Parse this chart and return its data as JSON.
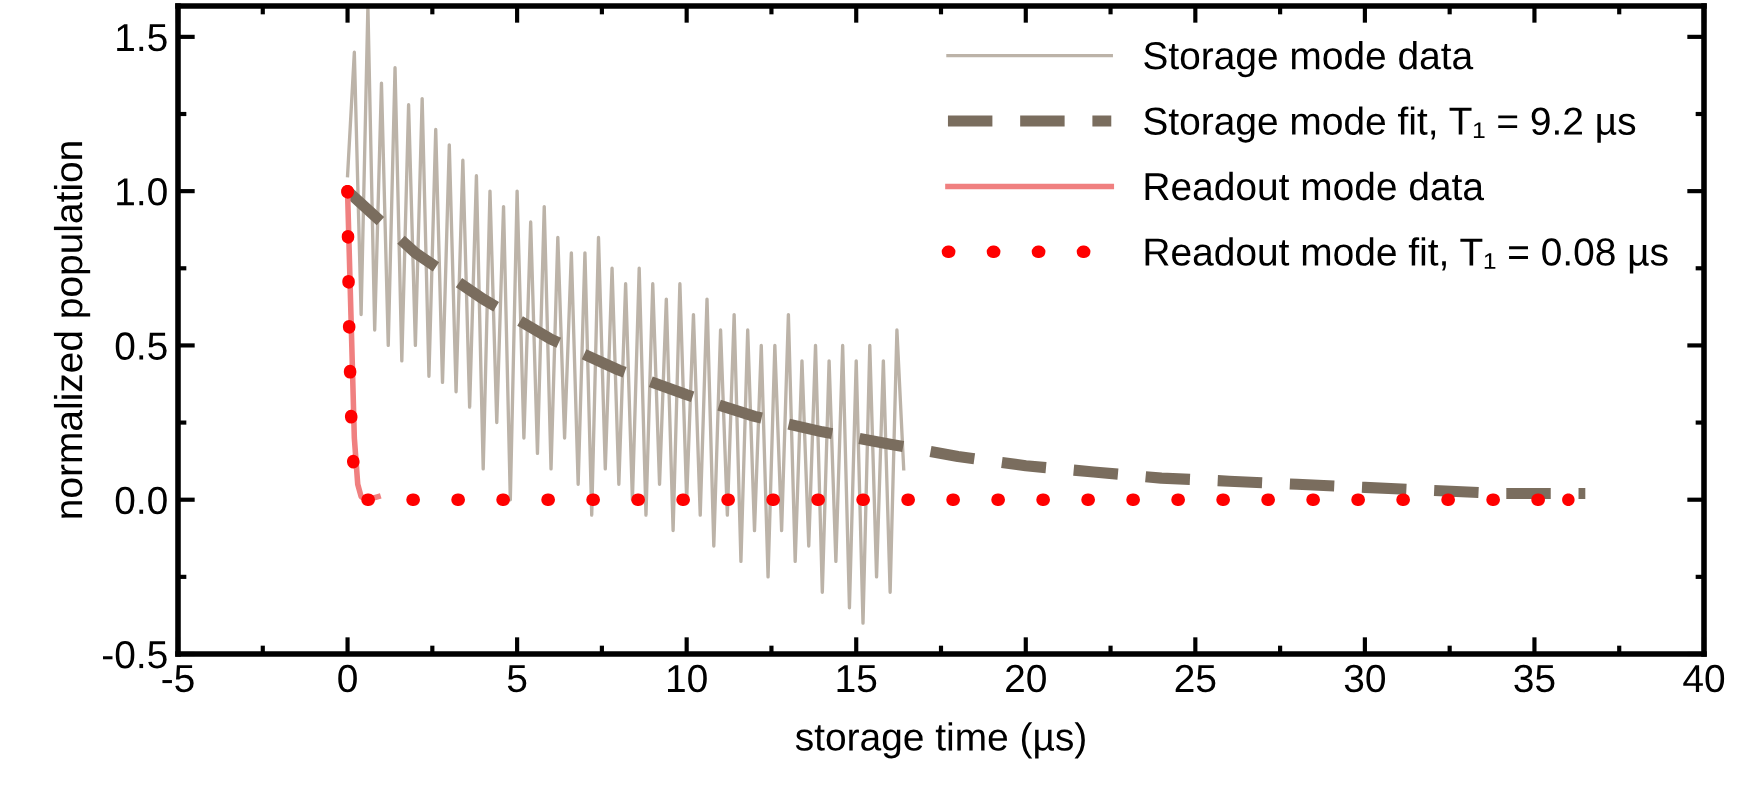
{
  "chart_data": {
    "type": "line",
    "xlabel": "storage time (µs)",
    "ylabel": "normalized population",
    "xlim": [
      -5,
      40
    ],
    "xticks": [
      -5,
      0,
      5,
      10,
      15,
      20,
      25,
      30,
      35,
      40
    ],
    "ylim": [
      -0.5,
      1.6
    ],
    "yticks": [
      -0.5,
      {
        "value": 0,
        "label": "0.0"
      },
      0.5,
      {
        "value": 1,
        "label": "1.0"
      },
      1.5
    ],
    "grid": false,
    "legend": "top right",
    "series": [
      {
        "name": "Storage mode data",
        "color": "#bcb3a8",
        "line_style": "solid",
        "x": [
          0,
          0.2,
          0.4,
          0.6,
          0.8,
          1.0,
          1.2,
          1.4,
          1.6,
          1.8,
          2.0,
          2.2,
          2.4,
          2.6,
          2.8,
          3.0,
          3.2,
          3.4,
          3.6,
          3.8,
          4.0,
          4.2,
          4.4,
          4.6,
          4.8,
          5.0,
          5.2,
          5.4,
          5.6,
          5.8,
          6.0,
          6.2,
          6.4,
          6.6,
          6.8,
          7.0,
          7.2,
          7.4,
          7.6,
          7.8,
          8.0,
          8.2,
          8.4,
          8.6,
          8.8,
          9.0,
          9.2,
          9.4,
          9.6,
          9.8,
          10.0,
          10.2,
          10.4,
          10.6,
          10.8,
          11.0,
          11.2,
          11.4,
          11.6,
          11.8,
          12.0,
          12.2,
          12.4,
          12.6,
          12.8,
          13.0,
          13.2,
          13.4,
          13.6,
          13.8,
          14.0,
          14.2,
          14.4,
          14.6,
          14.8,
          15.0,
          15.2,
          15.4,
          15.6,
          15.8,
          16.0,
          16.2,
          16.4
        ],
        "values": [
          1.05,
          1.45,
          0.6,
          1.6,
          0.55,
          1.35,
          0.5,
          1.4,
          0.45,
          1.28,
          0.5,
          1.3,
          0.4,
          1.2,
          0.38,
          1.15,
          0.35,
          1.1,
          0.3,
          1.05,
          0.1,
          1.0,
          0.25,
          0.95,
          0.0,
          1.0,
          0.2,
          0.9,
          0.15,
          0.95,
          0.1,
          0.85,
          0.2,
          0.8,
          0.05,
          0.8,
          -0.05,
          0.85,
          0.1,
          0.75,
          0.05,
          0.7,
          0.0,
          0.75,
          -0.05,
          0.7,
          0.05,
          0.65,
          -0.1,
          0.7,
          0.0,
          0.6,
          -0.05,
          0.65,
          -0.15,
          0.55,
          -0.05,
          0.6,
          -0.2,
          0.55,
          -0.1,
          0.5,
          -0.25,
          0.5,
          -0.1,
          0.6,
          -0.2,
          0.45,
          -0.15,
          0.5,
          -0.3,
          0.45,
          -0.2,
          0.5,
          -0.35,
          0.45,
          -0.4,
          0.5,
          -0.25,
          0.45,
          -0.3,
          0.55,
          0.1
        ]
      },
      {
        "name": "Storage mode fit, T₁ = 9.2 µs",
        "color": "#7a6d5e",
        "line_style": "dashed",
        "x": [
          0,
          2,
          4,
          6,
          8,
          10,
          12,
          14,
          16,
          18,
          20,
          22,
          24,
          26,
          28,
          30,
          32,
          34,
          36.5
        ],
        "values": [
          1.0,
          0.8,
          0.65,
          0.52,
          0.42,
          0.34,
          0.27,
          0.22,
          0.18,
          0.14,
          0.11,
          0.09,
          0.07,
          0.06,
          0.05,
          0.04,
          0.03,
          0.02,
          0.02
        ]
      },
      {
        "name": "Readout mode data",
        "color": "#f08080",
        "line_style": "solid",
        "x": [
          0,
          0.05,
          0.1,
          0.15,
          0.2,
          0.3,
          0.4,
          0.6,
          0.9
        ],
        "values": [
          1.0,
          0.8,
          0.6,
          0.4,
          0.2,
          0.05,
          0.01,
          0.0,
          0.01
        ]
      },
      {
        "name": "Readout mode fit, T₁ = 0.08 µs",
        "color": "#ff0000",
        "line_style": "dotted",
        "x": [
          0,
          0.02,
          0.05,
          0.1,
          0.15,
          0.2,
          0.3,
          0.5,
          36
        ],
        "values": [
          1.0,
          0.78,
          0.54,
          0.29,
          0.15,
          0.08,
          0.02,
          0.0,
          0.0
        ]
      }
    ]
  }
}
